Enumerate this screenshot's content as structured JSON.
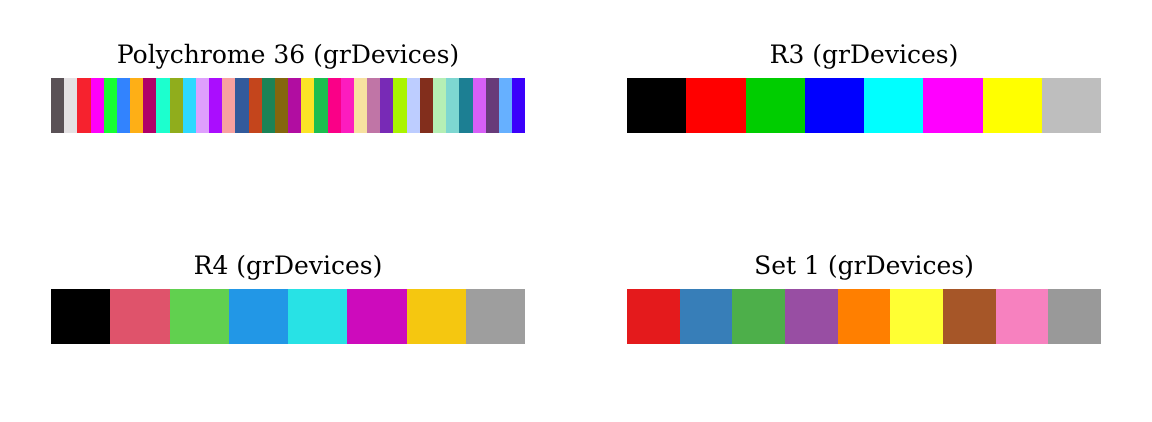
{
  "palettes": [
    {
      "title": "Polychrome 36 (grDevices)",
      "colors": [
        "#5A5156",
        "#E4E1E3",
        "#F6222E",
        "#FE00FA",
        "#16FF32",
        "#3283FE",
        "#FEAF16",
        "#B00068",
        "#1CFFCE",
        "#90AD1C",
        "#2ED9FF",
        "#DEA0FD",
        "#AA0DFE",
        "#F8A19F",
        "#325A9B",
        "#C4451C",
        "#1C8356",
        "#85660D",
        "#B10DA1",
        "#FBE426",
        "#1CBE4F",
        "#FA0087",
        "#FC1CBF",
        "#F7E1A0",
        "#C075A6",
        "#782AB6",
        "#AAF400",
        "#BDCDFF",
        "#822E1C",
        "#B5EFB5",
        "#7ED7D1",
        "#1C7F93",
        "#D85FF7",
        "#683B79",
        "#66B0FF",
        "#3B00FB"
      ]
    },
    {
      "title": "R3 (grDevices)",
      "colors": [
        "#000000",
        "#FF0000",
        "#00CD00",
        "#0000FF",
        "#00FFFF",
        "#FF00FF",
        "#FFFF00",
        "#BEBEBE"
      ]
    },
    {
      "title": "R4 (grDevices)",
      "colors": [
        "#000000",
        "#DF536B",
        "#61D04F",
        "#2297E6",
        "#28E2E5",
        "#CD0BBC",
        "#F5C710",
        "#9E9E9E"
      ]
    },
    {
      "title": "Set 1 (grDevices)",
      "colors": [
        "#E41A1C",
        "#377EB8",
        "#4DAF4A",
        "#984EA3",
        "#FF7F00",
        "#FFFF33",
        "#A65628",
        "#F781BF",
        "#999999"
      ]
    }
  ]
}
